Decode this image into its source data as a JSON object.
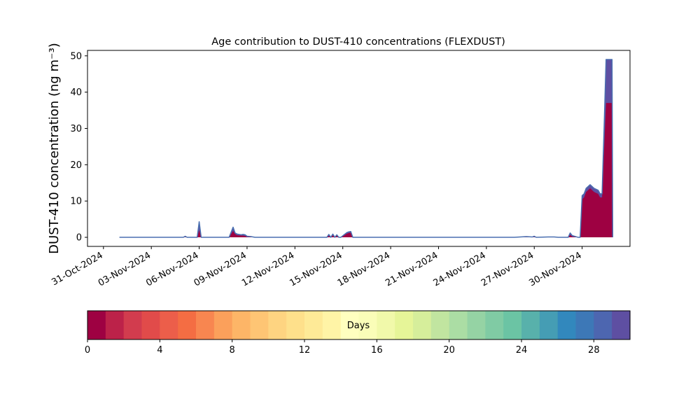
{
  "chart_data": {
    "type": "area",
    "title": "Age contribution to DUST-410 concentrations (FLEXDUST)",
    "ylabel": "DUST-410 concentration (ng m⁻³)",
    "xlabel": "",
    "xlim": [
      "2024-10-30",
      "2024-12-03"
    ],
    "ylim": [
      -2.5,
      51.5
    ],
    "yticks": [
      0,
      10,
      20,
      30,
      40,
      50
    ],
    "xticks": [
      "31-Oct-2024",
      "03-Nov-2024",
      "06-Nov-2024",
      "09-Nov-2024",
      "12-Nov-2024",
      "15-Nov-2024",
      "18-Nov-2024",
      "21-Nov-2024",
      "24-Nov-2024",
      "27-Nov-2024",
      "30-Nov-2024"
    ],
    "xtick_dates": [
      "2024-10-31",
      "2024-11-03",
      "2024-11-06",
      "2024-11-09",
      "2024-11-12",
      "2024-11-15",
      "2024-11-18",
      "2024-11-21",
      "2024-11-24",
      "2024-11-27",
      "2024-11-30"
    ],
    "grid": false,
    "total_series": {
      "x": [
        "2024-11-01 00:00",
        "2024-11-05 00:00",
        "2024-11-05 03:00",
        "2024-11-05 06:00",
        "2024-11-05 21:00",
        "2024-11-06 00:00",
        "2024-11-06 03:00",
        "2024-11-06 06:00",
        "2024-11-07 21:00",
        "2024-11-08 03:00",
        "2024-11-08 06:00",
        "2024-11-08 09:00",
        "2024-11-08 15:00",
        "2024-11-08 18:00",
        "2024-11-08 21:00",
        "2024-11-09 00:00",
        "2024-11-09 06:00",
        "2024-11-09 12:00",
        "2024-11-14 00:00",
        "2024-11-14 03:00",
        "2024-11-14 06:00",
        "2024-11-14 09:00",
        "2024-11-14 12:00",
        "2024-11-14 15:00",
        "2024-11-14 18:00",
        "2024-11-14 21:00",
        "2024-11-15 06:00",
        "2024-11-15 09:00",
        "2024-11-15 12:00",
        "2024-11-15 15:00",
        "2024-11-16 00:00",
        "2024-11-25 18:00",
        "2024-11-26 12:00",
        "2024-11-26 21:00",
        "2024-11-27 00:00",
        "2024-11-27 03:00",
        "2024-11-27 21:00",
        "2024-11-28 06:00",
        "2024-11-28 12:00",
        "2024-11-29 03:00",
        "2024-11-29 06:00",
        "2024-11-29 09:00",
        "2024-11-29 18:00",
        "2024-11-29 21:00",
        "2024-11-30 00:00",
        "2024-11-30 03:00",
        "2024-11-30 06:00",
        "2024-11-30 12:00",
        "2024-11-30 18:00",
        "2024-12-01 00:00",
        "2024-12-01 03:00",
        "2024-12-01 06:00",
        "2024-12-01 09:00",
        "2024-12-01 12:00",
        "2024-12-01 15:00",
        "2024-12-01 18:00",
        "2024-12-01 21:00",
        "2024-12-01 22:00"
      ],
      "y": [
        0,
        0,
        0.3,
        0,
        0,
        4.3,
        0,
        0,
        0,
        2.8,
        1.2,
        0.9,
        0.7,
        0.8,
        0.7,
        0.3,
        0.2,
        0,
        0,
        0.8,
        0,
        0.9,
        0,
        0.7,
        0,
        0,
        1.3,
        1.5,
        1.6,
        0,
        0,
        0,
        0.2,
        0.1,
        0.3,
        0,
        0.1,
        0.1,
        0,
        0,
        1.2,
        0.5,
        0,
        0,
        11.5,
        12,
        13.5,
        14.5,
        13.5,
        13,
        12,
        12,
        30,
        49,
        49,
        49,
        49,
        0
      ]
    },
    "youngest_age_series": {
      "name": "0-1 days",
      "y": [
        0,
        0,
        0.1,
        0,
        0,
        2.0,
        0,
        0,
        0,
        1.8,
        0.9,
        0.6,
        0.5,
        0.5,
        0.4,
        0.1,
        0.1,
        0,
        0,
        0.5,
        0,
        0.6,
        0,
        0.5,
        0,
        0,
        1.0,
        1.2,
        1.3,
        0,
        0,
        0,
        0.1,
        0,
        0.1,
        0,
        0,
        0,
        0,
        0,
        0.7,
        0.2,
        0,
        0,
        10.5,
        11,
        12.5,
        13.5,
        12.5,
        12,
        11,
        11,
        24,
        37,
        37,
        37,
        37,
        0
      ]
    },
    "colorbar": {
      "label": "Days",
      "min": 0,
      "max": 30,
      "ticks": [
        0,
        4,
        8,
        12,
        16,
        20,
        24,
        28
      ],
      "colors": [
        "#9e0142",
        "#bc2249",
        "#d23c4e",
        "#e14b4a",
        "#ec5e4a",
        "#f46d43",
        "#f88650",
        "#fba05b",
        "#fdb567",
        "#fec574",
        "#fed481",
        "#fee08b",
        "#feea97",
        "#fff4a6",
        "#ffffbf",
        "#fafdb8",
        "#f1f9aa",
        "#e6f598",
        "#d6ee9b",
        "#c1e5a0",
        "#abdda4",
        "#95d3a4",
        "#80cba4",
        "#6bc4a4",
        "#58b1ab",
        "#459db4",
        "#3288bd",
        "#3d78b7",
        "#4d66b0",
        "#5e4fa2"
      ]
    }
  }
}
